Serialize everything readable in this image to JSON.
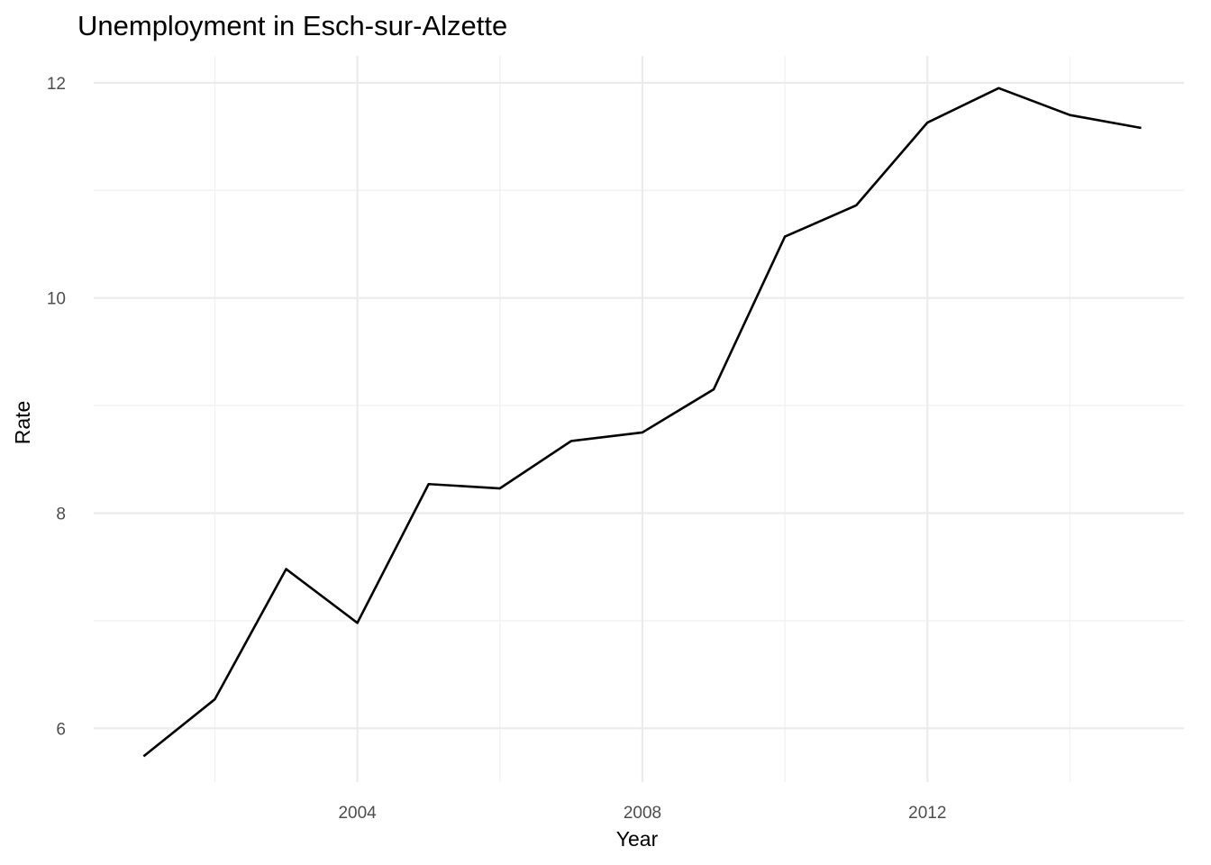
{
  "chart_data": {
    "type": "line",
    "title": "Unemployment in Esch-sur-Alzette",
    "xlabel": "Year",
    "ylabel": "Rate",
    "xlim": [
      2000.3,
      2015.6
    ],
    "ylim": [
      5.5,
      12.25
    ],
    "x_ticks": [
      2004,
      2008,
      2012
    ],
    "x_minor_ticks": [
      2002,
      2006,
      2010,
      2014
    ],
    "y_ticks": [
      6,
      8,
      10,
      12
    ],
    "y_minor_ticks": [
      7,
      9,
      11
    ],
    "x_tick_labels": [
      "2004",
      "2008",
      "2012"
    ],
    "y_tick_labels": [
      "6",
      "8",
      "10",
      "12"
    ],
    "grid": true,
    "legend": "none",
    "series": [
      {
        "color": "#000000",
        "x": [
          2001,
          2002,
          2003,
          2004,
          2005,
          2006,
          2007,
          2008,
          2009,
          2010,
          2011,
          2012,
          2013,
          2014,
          2015
        ],
        "y": [
          5.74,
          6.27,
          7.48,
          6.98,
          8.27,
          8.23,
          8.67,
          8.75,
          9.15,
          10.57,
          10.86,
          11.63,
          11.95,
          11.7,
          11.58
        ]
      }
    ]
  }
}
